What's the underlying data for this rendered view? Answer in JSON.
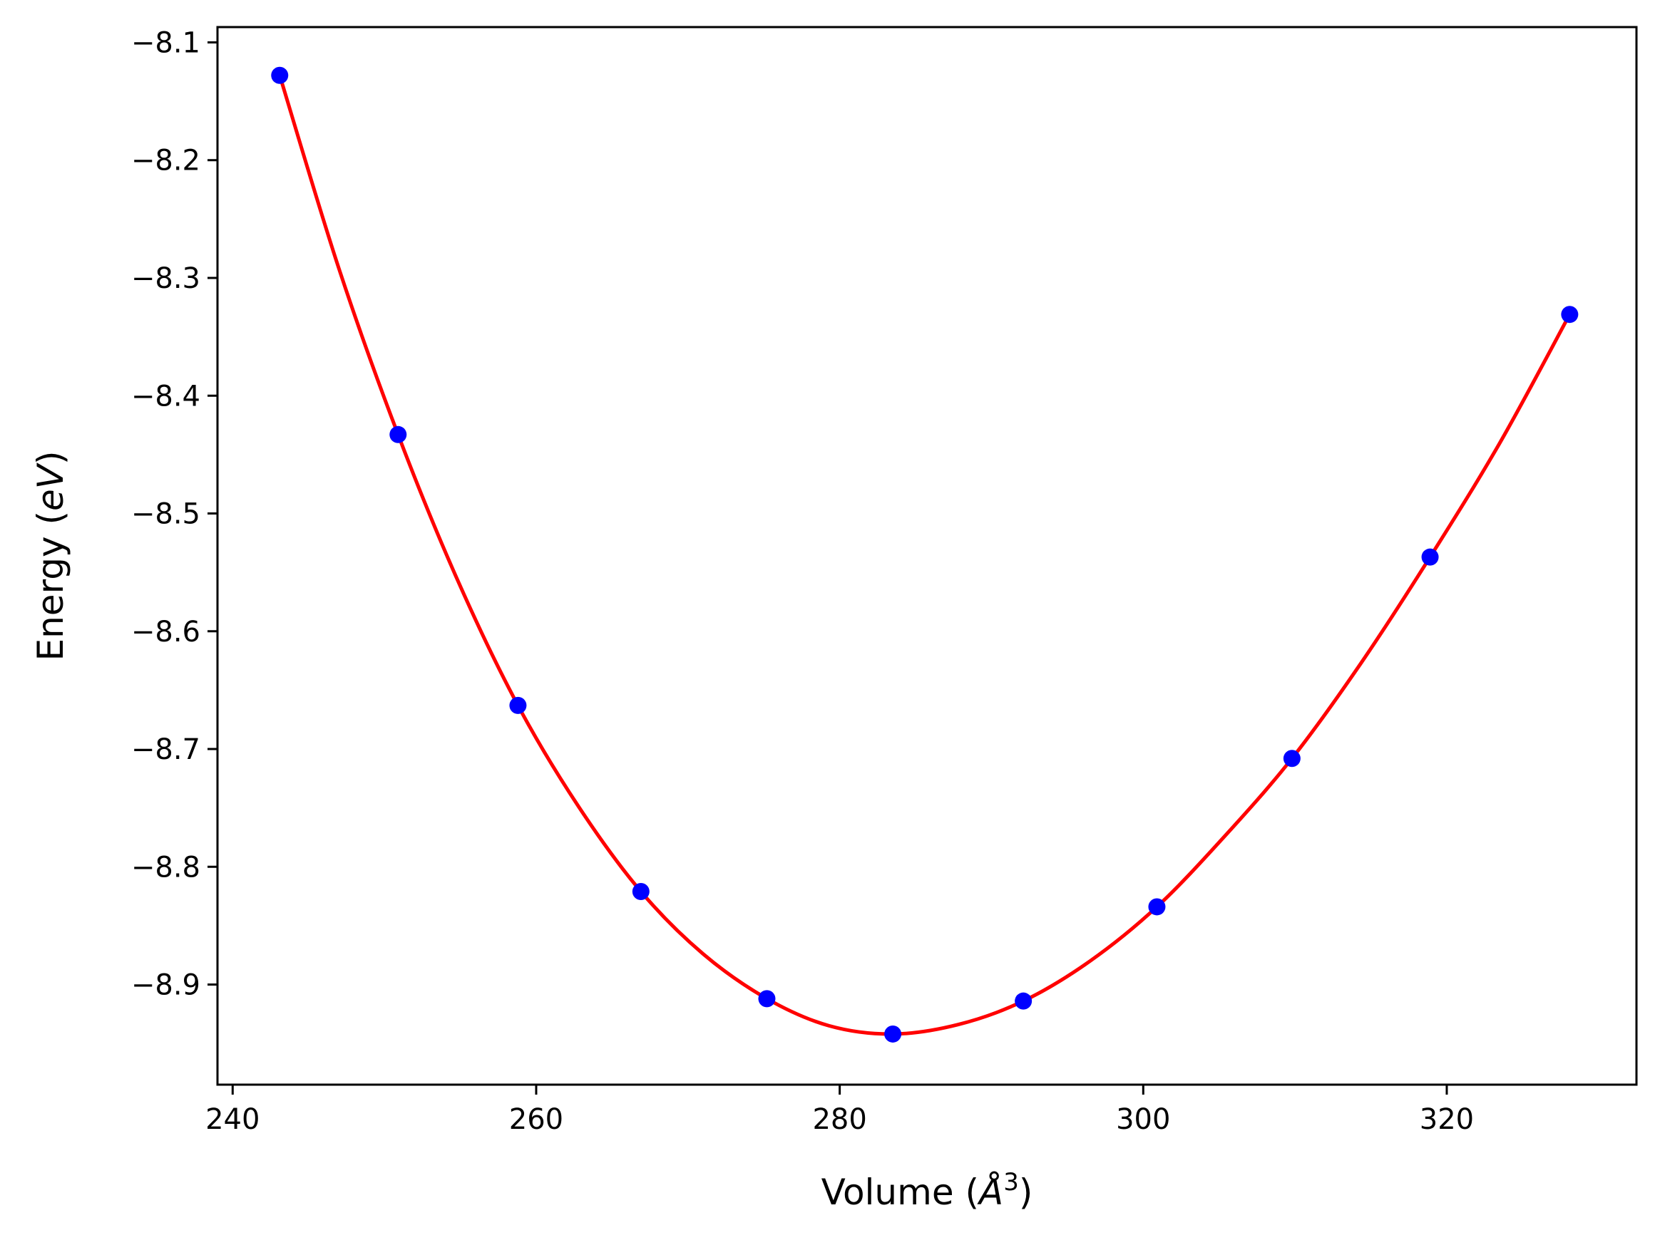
{
  "chart_data": {
    "type": "scatter",
    "xlabel_parts": [
      "Volume (",
      "Å",
      "3",
      ")"
    ],
    "ylabel_parts": [
      "Energy (",
      "eV",
      ")"
    ],
    "xlim": [
      239.0,
      332.5
    ],
    "ylim": [
      -8.985,
      -8.087
    ],
    "xticks": [
      240,
      260,
      280,
      300,
      320
    ],
    "xtick_labels": [
      "240",
      "260",
      "280",
      "300",
      "320"
    ],
    "yticks": [
      -8.1,
      -8.2,
      -8.3,
      -8.4,
      -8.5,
      -8.6,
      -8.7,
      -8.8,
      -8.9
    ],
    "ytick_labels": [
      "−8.1",
      "−8.2",
      "−8.3",
      "−8.4",
      "−8.5",
      "−8.6",
      "−8.7",
      "−8.8",
      "−8.9"
    ],
    "grid": false,
    "series": [
      {
        "kind": "points",
        "color": "#0000ff",
        "x": [
          243.1,
          250.9,
          258.8,
          266.9,
          275.2,
          283.5,
          292.1,
          300.9,
          309.8,
          318.9,
          328.1
        ],
        "y": [
          -8.128,
          -8.433,
          -8.663,
          -8.821,
          -8.912,
          -8.942,
          -8.914,
          -8.834,
          -8.708,
          -8.537,
          -8.331
        ]
      },
      {
        "kind": "fit-curve",
        "color": "#ff0000",
        "x": [
          243.1,
          247.0,
          250.9,
          254.8,
          258.8,
          262.8,
          266.9,
          271.0,
          275.2,
          279.3,
          283.5,
          287.8,
          292.1,
          296.5,
          300.9,
          305.3,
          309.8,
          314.3,
          318.9,
          323.5,
          328.1
        ],
        "y": [
          -8.128,
          -8.292,
          -8.433,
          -8.556,
          -8.663,
          -8.749,
          -8.821,
          -8.874,
          -8.912,
          -8.935,
          -8.942,
          -8.934,
          -8.914,
          -8.88,
          -8.834,
          -8.775,
          -8.708,
          -8.628,
          -8.537,
          -8.44,
          -8.331
        ]
      }
    ]
  }
}
